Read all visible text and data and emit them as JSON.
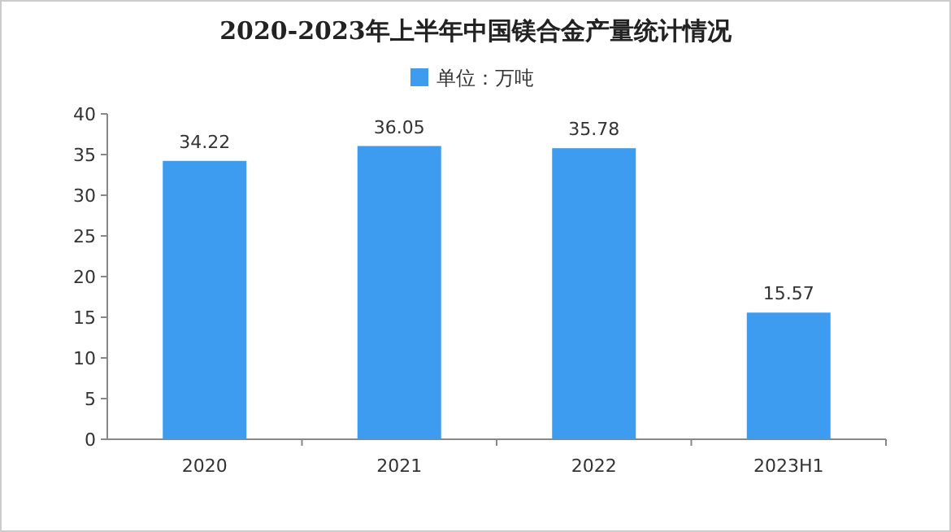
{
  "chart_data": {
    "type": "bar",
    "title": "2020-2023年上半年中国镁合金产量统计情况",
    "categories": [
      "2020",
      "2021",
      "2022",
      "2023H1"
    ],
    "series": [
      {
        "name": "单位：万吨",
        "color": "#3d9cf0",
        "values": [
          34.22,
          36.05,
          35.78,
          15.57
        ]
      }
    ],
    "ylim": [
      0,
      40
    ],
    "yticks": [
      0,
      5,
      10,
      15,
      20,
      25,
      30,
      35,
      40
    ],
    "data_labels": true,
    "legend": "top"
  }
}
